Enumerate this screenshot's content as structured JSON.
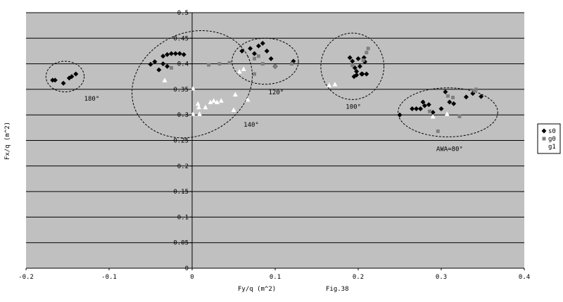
{
  "chart_data": {
    "type": "scatter",
    "title": "",
    "xlabel": "Fy/q (m^2)",
    "ylabel": "Fx/q (m^2)",
    "figure_label": "Fig.38",
    "xlim": [
      -0.2,
      0.4
    ],
    "ylim": [
      0,
      0.5
    ],
    "x_ticks": [
      "-0.2",
      "-0.1",
      "0",
      "0.1",
      "0.2",
      "0.3",
      "0.4"
    ],
    "y_ticks": [
      "0",
      "0.05",
      "0.1",
      "0.15",
      "0.2",
      "0.25",
      "0.3",
      "0.35",
      "0.4",
      "0.45",
      "0.5"
    ],
    "grid": true,
    "legend_position": "right",
    "colors": {
      "plot_background": "#c0c0c0",
      "grid": "#000000",
      "s0": "#000000",
      "g0": "#808080",
      "g1": "#ffffff"
    },
    "series": [
      {
        "name": "s0",
        "marker": "diamond",
        "points": [
          [
            -0.168,
            0.368
          ],
          [
            -0.165,
            0.368
          ],
          [
            -0.155,
            0.362
          ],
          [
            -0.148,
            0.372
          ],
          [
            -0.145,
            0.375
          ],
          [
            -0.14,
            0.38
          ],
          [
            -0.05,
            0.399
          ],
          [
            -0.045,
            0.404
          ],
          [
            -0.04,
            0.388
          ],
          [
            -0.035,
            0.415
          ],
          [
            -0.03,
            0.418
          ],
          [
            -0.025,
            0.42
          ],
          [
            -0.02,
            0.42
          ],
          [
            -0.015,
            0.42
          ],
          [
            -0.01,
            0.418
          ],
          [
            -0.035,
            0.4
          ],
          [
            -0.03,
            0.395
          ],
          [
            0.06,
            0.425
          ],
          [
            0.07,
            0.43
          ],
          [
            0.075,
            0.42
          ],
          [
            0.08,
            0.435
          ],
          [
            0.085,
            0.44
          ],
          [
            0.09,
            0.425
          ],
          [
            0.095,
            0.41
          ],
          [
            0.1,
            0.395
          ],
          [
            0.122,
            0.405
          ],
          [
            0.19,
            0.412
          ],
          [
            0.193,
            0.405
          ],
          [
            0.196,
            0.392
          ],
          [
            0.198,
            0.385
          ],
          [
            0.2,
            0.41
          ],
          [
            0.202,
            0.395
          ],
          [
            0.204,
            0.38
          ],
          [
            0.205,
            0.38
          ],
          [
            0.207,
            0.412
          ],
          [
            0.208,
            0.404
          ],
          [
            0.21,
            0.38
          ],
          [
            0.195,
            0.375
          ],
          [
            0.198,
            0.378
          ],
          [
            0.25,
            0.3
          ],
          [
            0.265,
            0.312
          ],
          [
            0.27,
            0.312
          ],
          [
            0.275,
            0.312
          ],
          [
            0.278,
            0.325
          ],
          [
            0.28,
            0.318
          ],
          [
            0.285,
            0.32
          ],
          [
            0.29,
            0.305
          ],
          [
            0.3,
            0.312
          ],
          [
            0.305,
            0.345
          ],
          [
            0.31,
            0.325
          ],
          [
            0.315,
            0.322
          ],
          [
            0.33,
            0.335
          ],
          [
            0.338,
            0.342
          ],
          [
            0.348,
            0.336
          ]
        ]
      },
      {
        "name": "g0",
        "marker": "square",
        "points": [
          [
            -0.025,
            0.392
          ],
          [
            0.02,
            0.398
          ],
          [
            0.033,
            0.4
          ],
          [
            0.045,
            0.402
          ],
          [
            0.075,
            0.41
          ],
          [
            0.08,
            0.415
          ],
          [
            0.075,
            0.38
          ],
          [
            0.085,
            0.4
          ],
          [
            0.1,
            0.395
          ],
          [
            0.12,
            0.4
          ],
          [
            0.193,
            0.397
          ],
          [
            0.206,
            0.407
          ],
          [
            0.21,
            0.422
          ],
          [
            0.212,
            0.43
          ],
          [
            0.286,
            0.307
          ],
          [
            0.296,
            0.268
          ],
          [
            0.308,
            0.337
          ],
          [
            0.314,
            0.334
          ],
          [
            0.322,
            0.297
          ],
          [
            0.34,
            0.347
          ],
          [
            0.342,
            0.35
          ]
        ]
      },
      {
        "name": "g1",
        "marker": "triangle",
        "points": [
          [
            -0.033,
            0.368
          ],
          [
            0.001,
            0.302
          ],
          [
            0.001,
            0.352
          ],
          [
            0.007,
            0.322
          ],
          [
            0.008,
            0.315
          ],
          [
            0.009,
            0.302
          ],
          [
            0.016,
            0.315
          ],
          [
            0.022,
            0.325
          ],
          [
            0.026,
            0.328
          ],
          [
            0.03,
            0.325
          ],
          [
            0.035,
            0.328
          ],
          [
            0.05,
            0.31
          ],
          [
            0.052,
            0.34
          ],
          [
            0.057,
            0.385
          ],
          [
            0.062,
            0.39
          ],
          [
            0.067,
            0.33
          ],
          [
            0.165,
            0.358
          ],
          [
            0.172,
            0.36
          ],
          [
            0.29,
            0.297
          ],
          [
            0.307,
            0.302
          ]
        ]
      }
    ],
    "annotations": [
      {
        "text": "180°",
        "x": -0.13,
        "y": 0.328
      },
      {
        "text": "140°",
        "x": 0.062,
        "y": 0.277
      },
      {
        "text": "120°",
        "x": 0.092,
        "y": 0.34
      },
      {
        "text": "100°",
        "x": 0.185,
        "y": 0.312
      },
      {
        "text": "AWA=80°",
        "x": 0.294,
        "y": 0.229
      }
    ],
    "ellipses": [
      {
        "label": "180°",
        "cx": -0.153,
        "cy": 0.375,
        "rx": 0.023,
        "ry": 0.03,
        "angle": 0
      },
      {
        "label": "140°",
        "cx": 0.0,
        "cy": 0.36,
        "rx": 0.075,
        "ry": 0.1,
        "angle": -27
      },
      {
        "label": "120°",
        "cx": 0.088,
        "cy": 0.405,
        "rx": 0.04,
        "ry": 0.045,
        "angle": 0
      },
      {
        "label": "100°",
        "cx": 0.193,
        "cy": 0.395,
        "rx": 0.038,
        "ry": 0.065,
        "angle": 0
      },
      {
        "label": "AWA=80°",
        "cx": 0.308,
        "cy": 0.305,
        "rx": 0.06,
        "ry": 0.048,
        "angle": 0
      }
    ]
  }
}
